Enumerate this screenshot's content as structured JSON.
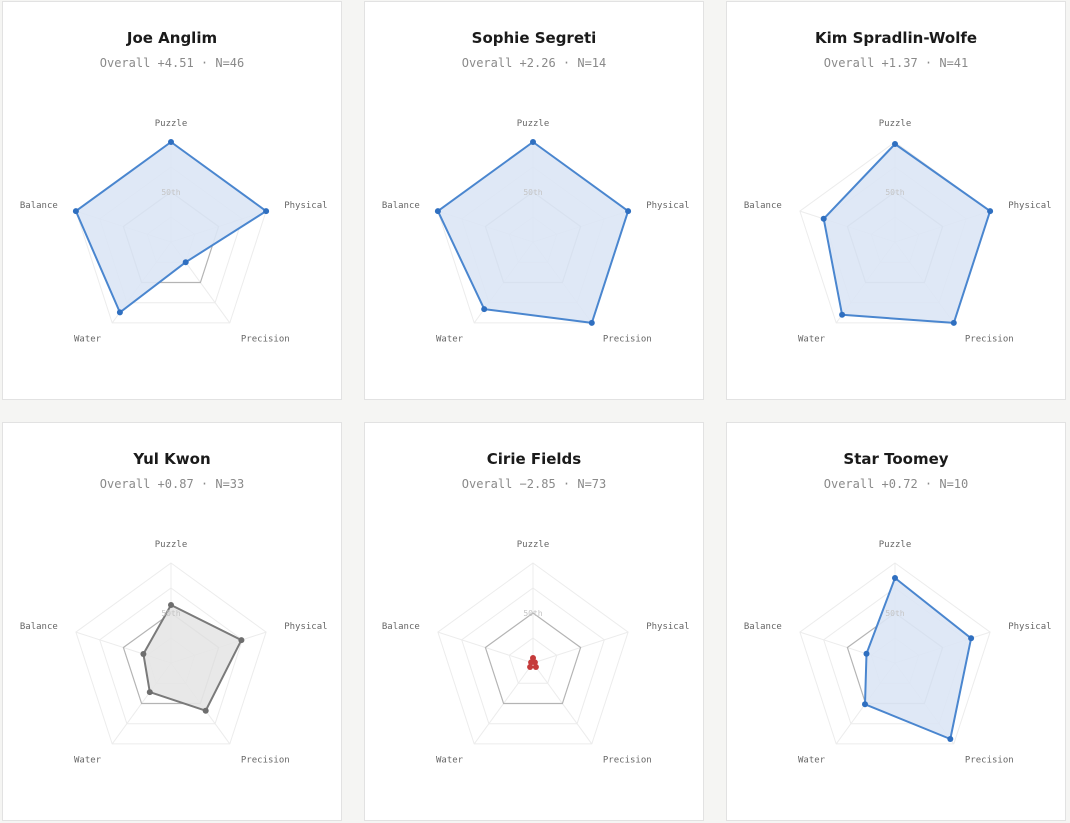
{
  "chart_data": {
    "type": "radar",
    "axes": [
      "Puzzle",
      "Physical",
      "Precision",
      "Water",
      "Balance"
    ],
    "reference_label": "50th",
    "colors": {
      "positive_line": "#4a86cf",
      "positive_fill": "#dbe6f5",
      "positive_dot": "#2f6fc0",
      "neutral_line": "#7a7a7a",
      "neutral_fill": "#e6e6e6",
      "neutral_dot": "#6e6e6e",
      "negative_line": "#c53a3a",
      "negative_dot": "#c53a3a",
      "grid": "#ececec",
      "reference": "#b4b4b4"
    },
    "charts": [
      {
        "name": "Joe Anglim",
        "subtitle": "Overall +4.51 · N=46",
        "style": "positive",
        "values": [
          100,
          100,
          25,
          87,
          100
        ]
      },
      {
        "name": "Sophie Segreti",
        "subtitle": "Overall +2.26 · N=14",
        "style": "positive",
        "values": [
          100,
          100,
          100,
          83,
          100
        ]
      },
      {
        "name": "Kim Spradlin-Wolfe",
        "subtitle": "Overall +1.37 · N=41",
        "style": "positive",
        "values": [
          98,
          100,
          100,
          90,
          75
        ]
      },
      {
        "name": "Yul Kwon",
        "subtitle": "Overall +0.87 · N=33",
        "style": "neutral",
        "values": [
          58,
          74,
          59,
          36,
          29
        ]
      },
      {
        "name": "Cirie Fields",
        "subtitle": "Overall −2.85 · N=73",
        "style": "negative",
        "values": [
          5,
          2,
          5,
          5,
          2
        ]
      },
      {
        "name": "Star Toomey",
        "subtitle": "Overall +0.72 · N=10",
        "style": "positive",
        "values": [
          85,
          80,
          94,
          51,
          30
        ]
      }
    ]
  }
}
